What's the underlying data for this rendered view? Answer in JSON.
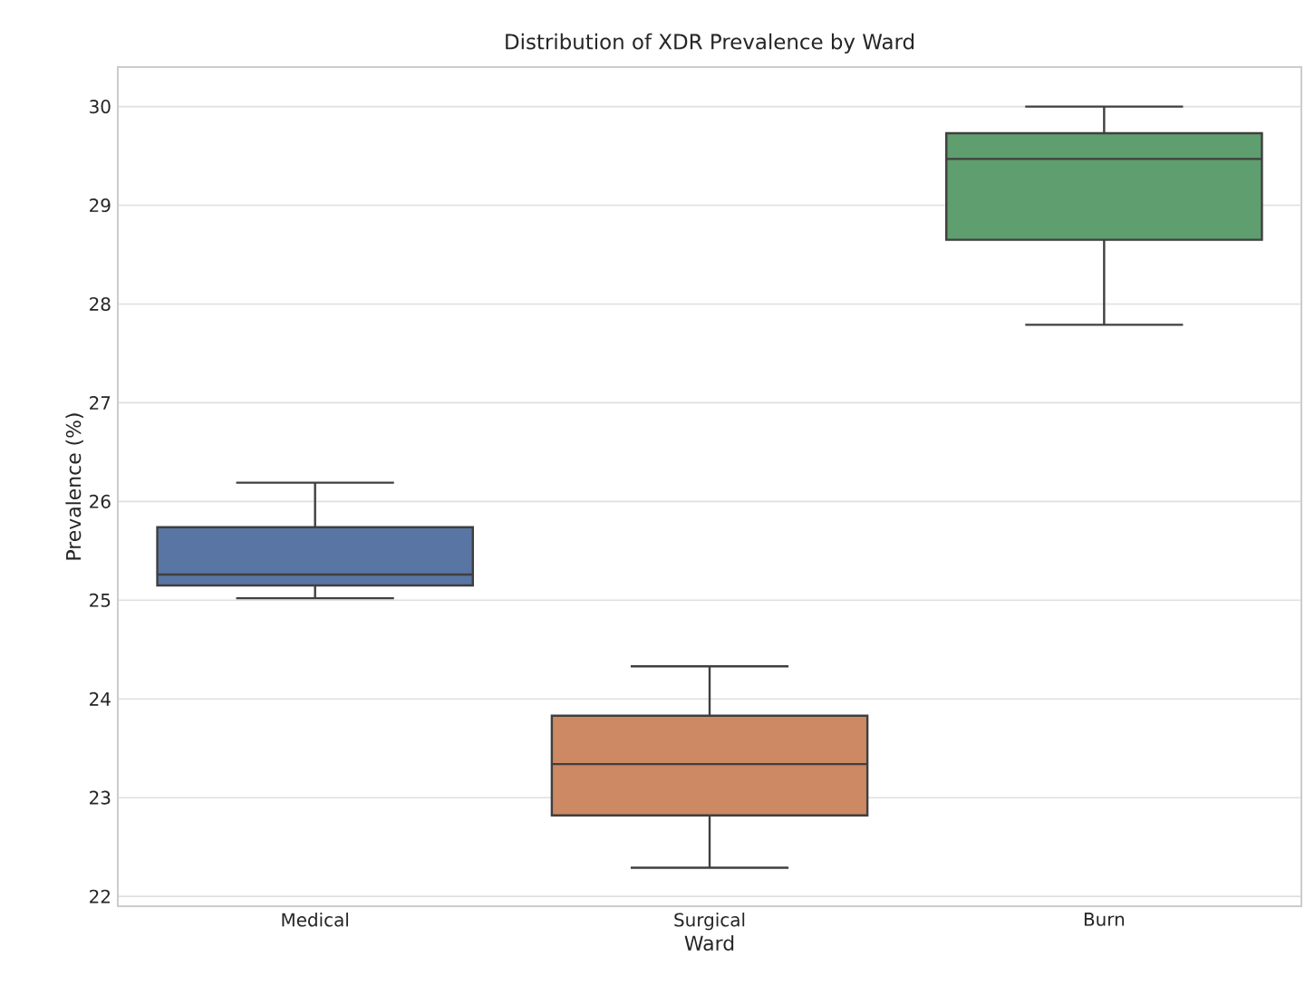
{
  "chart_data": {
    "type": "box",
    "title": "Distribution of XDR Prevalence by Ward",
    "xlabel": "Ward",
    "ylabel": "Prevalence (%)",
    "categories": [
      "Medical",
      "Surgical",
      "Burn"
    ],
    "colors": [
      "#5975a4",
      "#cc8963",
      "#5f9e6e"
    ],
    "boxes": [
      {
        "low": 25.02,
        "q1": 25.15,
        "median": 25.26,
        "q3": 25.74,
        "high": 26.19
      },
      {
        "low": 22.29,
        "q1": 22.82,
        "median": 23.34,
        "q3": 23.83,
        "high": 24.33
      },
      {
        "low": 27.79,
        "q1": 28.65,
        "median": 29.47,
        "q3": 29.73,
        "high": 30.0
      }
    ],
    "ylim": [
      21.9,
      30.4
    ],
    "yticks": [
      22,
      23,
      24,
      25,
      26,
      27,
      28,
      29,
      30
    ],
    "grid": "y"
  }
}
